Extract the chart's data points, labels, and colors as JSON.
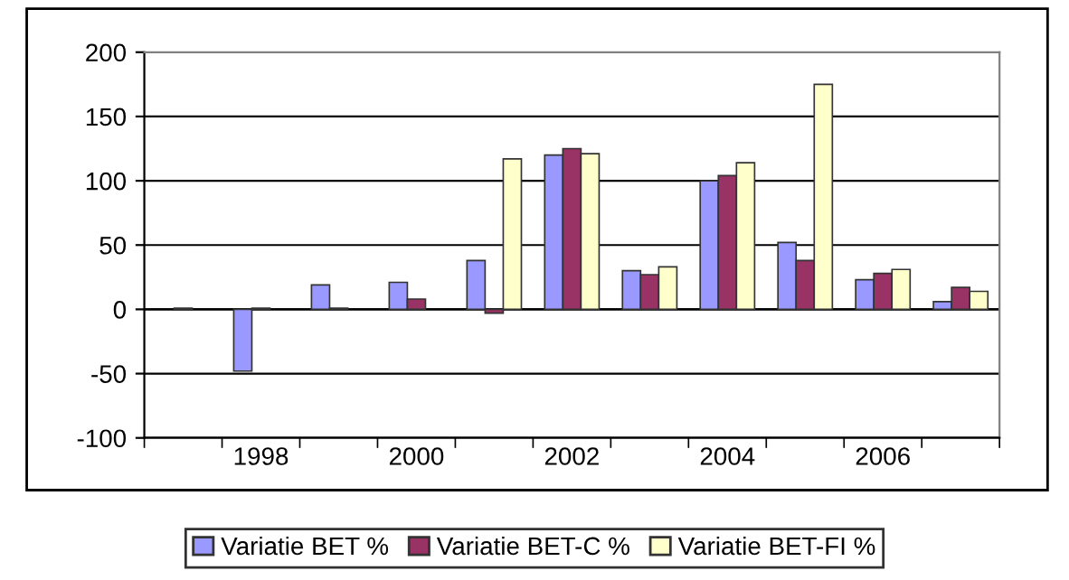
{
  "chart_data": {
    "type": "bar",
    "categories": [
      null,
      "1998",
      null,
      "2000",
      null,
      "2002",
      null,
      "2004",
      null,
      "2006",
      null
    ],
    "series": [
      {
        "name": "Variatie BET %",
        "color": "#9999ff",
        "values": [
          null,
          -48,
          19,
          21,
          38,
          120,
          30,
          100,
          52,
          23,
          6
        ]
      },
      {
        "name": "Variatie BET-C %",
        "color": "#993366",
        "values": [
          1,
          1,
          1,
          8,
          -3,
          125,
          27,
          104,
          38,
          28,
          17
        ]
      },
      {
        "name": "Variatie BET-FI %",
        "color": "#ffffcc",
        "values": [
          null,
          null,
          null,
          null,
          117,
          121,
          33,
          114,
          175,
          31,
          14
        ]
      }
    ],
    "ylim": [
      -100,
      200
    ],
    "yticks": [
      -100,
      -50,
      0,
      50,
      100,
      150,
      200
    ],
    "grid": "y",
    "legend": "bottom"
  }
}
